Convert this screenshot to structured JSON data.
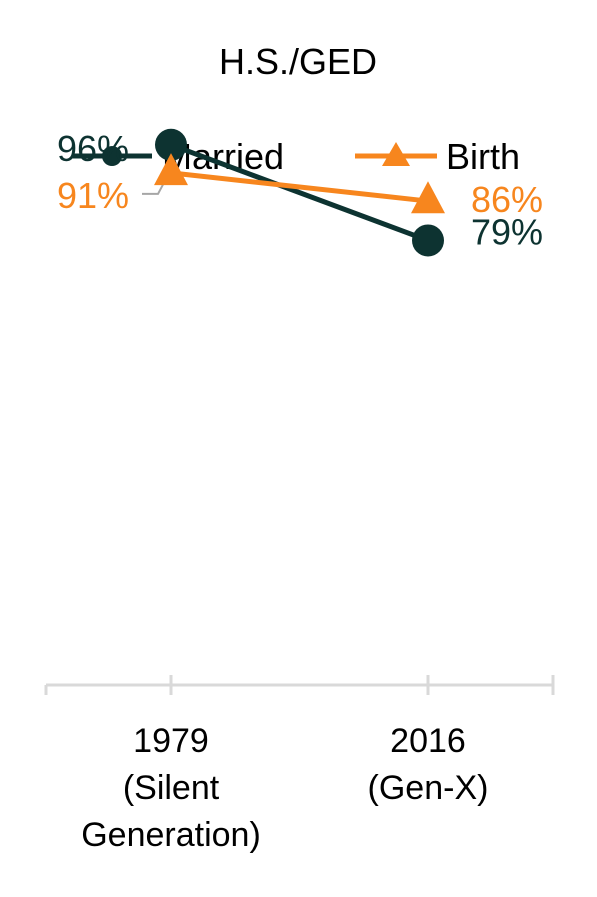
{
  "chart_data": {
    "type": "line",
    "title": "H.S./GED",
    "categories": [
      [
        "1979",
        "(Silent",
        "Generation)"
      ],
      [
        "2016",
        "(Gen-X)"
      ]
    ],
    "series": [
      {
        "name": "Married",
        "values": [
          96,
          79
        ],
        "data_labels": [
          "96%",
          "79%"
        ],
        "color": "#0d3331",
        "marker": "circle"
      },
      {
        "name": "Birth",
        "values": [
          91,
          86
        ],
        "data_labels": [
          "91%",
          "86%"
        ],
        "color": "#f7861e",
        "marker": "triangle"
      }
    ],
    "ylim": [
      0,
      110
    ],
    "grid": false,
    "legend_position": "top"
  }
}
